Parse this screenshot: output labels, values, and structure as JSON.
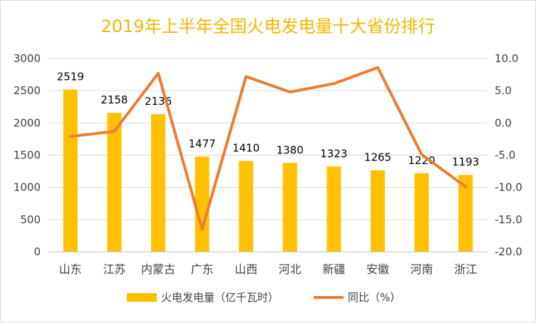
{
  "chart_data": {
    "type": "bar",
    "title": "2019年上半年全国火电发电量十大省份排行",
    "categories": [
      "山东",
      "江苏",
      "内蒙古",
      "广东",
      "山西",
      "河北",
      "新疆",
      "安徽",
      "河南",
      "浙江"
    ],
    "series": [
      {
        "name": "火电发电量（亿千瓦时）",
        "type": "bar",
        "axis": "left",
        "values": [
          2519,
          2158,
          2136,
          1477,
          1410,
          1380,
          1323,
          1265,
          1220,
          1193
        ],
        "data_labels": [
          "2519",
          "2158",
          "2136",
          "1477",
          "1410",
          "1380",
          "1323",
          "1265",
          "1220",
          "1193"
        ]
      },
      {
        "name": "同比（%）",
        "type": "line",
        "axis": "right",
        "values": [
          -2.1,
          -1.3,
          7.7,
          -16.5,
          7.2,
          4.8,
          6.1,
          8.6,
          -4.9,
          -9.9
        ]
      }
    ],
    "y_left": {
      "min": 0,
      "max": 3000,
      "ticks": [
        "0",
        "500",
        "1000",
        "1500",
        "2000",
        "2500",
        "3000"
      ]
    },
    "y_right": {
      "min": -20,
      "max": 10,
      "ticks": [
        "-20.0",
        "-15.0",
        "-10.0",
        "-5.0",
        "0.0",
        "5.0",
        "10.0"
      ]
    },
    "grid": true,
    "legend_position": "bottom",
    "colors": {
      "title": "#F2B705",
      "bar": "#FFC000",
      "line": "#ED7D31",
      "grid": "#D9D9D9",
      "axis_text": "#404040"
    }
  }
}
